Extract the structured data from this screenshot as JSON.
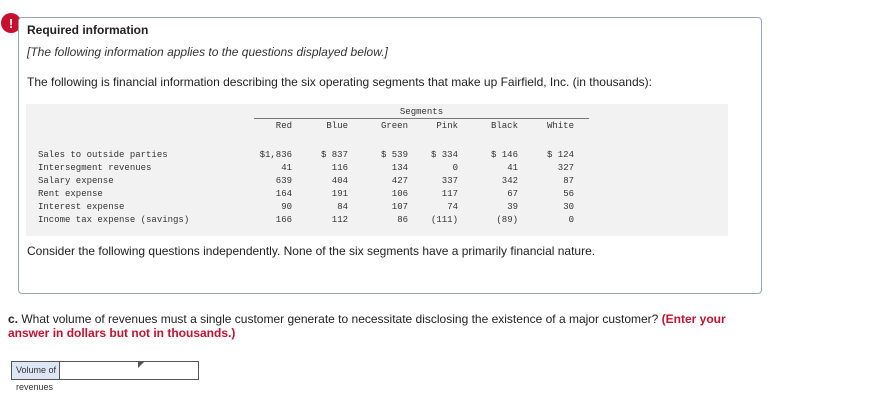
{
  "alert": {
    "symbol": "!"
  },
  "required": {
    "title": "Required information",
    "subtitle": "[The following information applies to the questions displayed below.]",
    "intro": "The following is financial information describing the six operating segments that make up Fairfield, Inc. (in thousands):"
  },
  "table": {
    "group_header": "Segments",
    "columns": [
      "Red",
      "Blue",
      "Green",
      "Pink",
      "Black",
      "White"
    ],
    "rows": [
      {
        "label": "Sales to outside parties",
        "values": [
          "$1,836",
          "$ 837",
          "$ 539",
          "$ 334",
          "$ 146",
          "$ 124"
        ]
      },
      {
        "label": "Intersegment revenues",
        "values": [
          "41",
          "116",
          "134",
          "0",
          "41",
          "327"
        ]
      },
      {
        "label": "Salary expense",
        "values": [
          "639",
          "404",
          "427",
          "337",
          "342",
          "87"
        ]
      },
      {
        "label": "Rent expense",
        "values": [
          "164",
          "191",
          "106",
          "117",
          "67",
          "56"
        ]
      },
      {
        "label": "Interest expense",
        "values": [
          "90",
          "84",
          "107",
          "74",
          "39",
          "30"
        ]
      },
      {
        "label": "Income tax expense (savings)",
        "values": [
          "166",
          "112",
          "86",
          "(111)",
          "(89)",
          "0"
        ]
      }
    ]
  },
  "consider_text": "Consider the following questions independently. None of the six segments have a primarily financial nature.",
  "question": {
    "letter": "c.",
    "text": " What volume of revenues must a single customer generate to necessitate disclosing the existence of a major customer? ",
    "instruction": "(Enter your answer in dollars but not in thousands.)"
  },
  "answer": {
    "label": "Volume of revenues",
    "value": ""
  },
  "colors": {
    "accent_red": "#c8102e",
    "box_border": "#9aa7b8",
    "table_bg": "#f2f2f2",
    "label_bg": "#dde6f5"
  }
}
